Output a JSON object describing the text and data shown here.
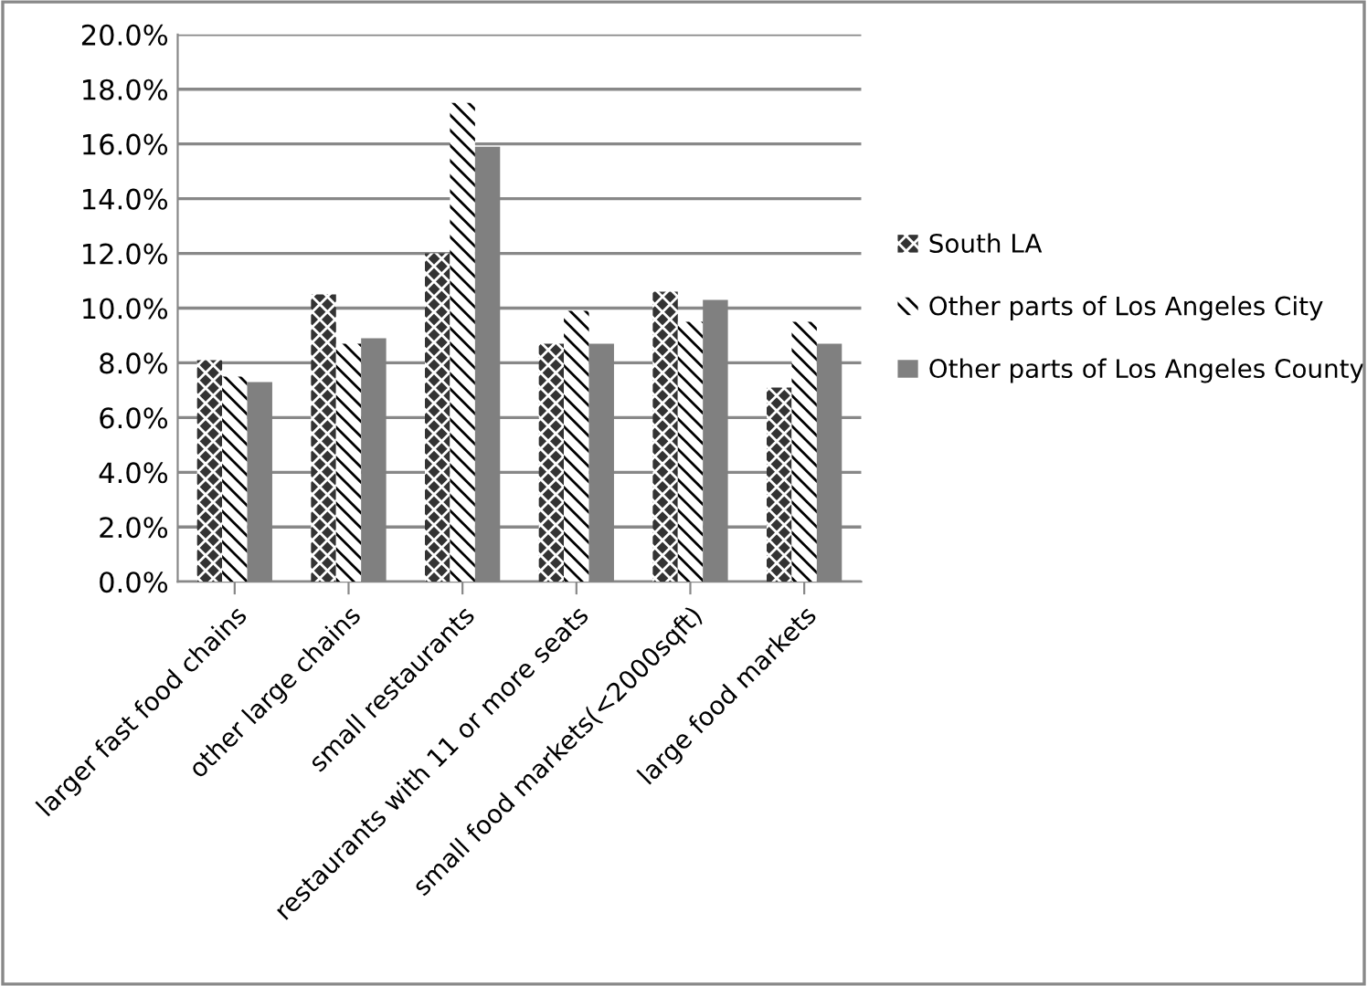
{
  "chart_data": {
    "type": "bar",
    "categories": [
      "larger fast food chains",
      "other large chains",
      "small restaurants",
      "restaurants with 11 or more seats",
      "small food markets(<2000sqft)",
      "large food markets"
    ],
    "series": [
      {
        "name": "South LA",
        "color": "#333333",
        "values": [
          8.1,
          10.5,
          12.0,
          8.7,
          10.6,
          7.1
        ]
      },
      {
        "name": "Other parts of Los Angeles City",
        "color": "#ffffff",
        "values": [
          7.5,
          8.7,
          17.5,
          9.9,
          9.5,
          9.5
        ]
      },
      {
        "name": "Other parts of Los Angeles County",
        "color": "#808080",
        "values": [
          7.3,
          8.9,
          15.9,
          8.7,
          10.3,
          8.7
        ]
      }
    ],
    "ylim": [
      0,
      20
    ],
    "yticks": [
      {
        "value": 0,
        "label": "0.0%"
      },
      {
        "value": 2,
        "label": "2.0%"
      },
      {
        "value": 4,
        "label": "4.0%"
      },
      {
        "value": 6,
        "label": "6.0%"
      },
      {
        "value": 8,
        "label": "8.0%"
      },
      {
        "value": 10,
        "label": "10.0%"
      },
      {
        "value": 12,
        "label": "12.0%"
      },
      {
        "value": 14,
        "label": "14.0%"
      },
      {
        "value": 16,
        "label": "16.0%"
      },
      {
        "value": 18,
        "label": "18.0%"
      },
      {
        "value": 20,
        "label": "20.0%"
      }
    ],
    "grid": "y",
    "legend": "right"
  }
}
